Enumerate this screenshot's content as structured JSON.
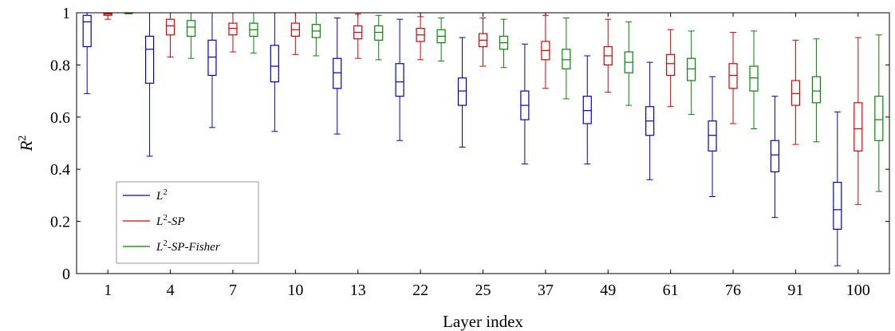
{
  "chart_data": {
    "type": "box",
    "xlabel": "Layer index",
    "ylabel_base": "R",
    "ylabel_sup": "2",
    "ylim": [
      0,
      1
    ],
    "yticks": [
      "0",
      "0.2",
      "0.4",
      "0.6",
      "0.8",
      "1"
    ],
    "categories": [
      "1",
      "4",
      "7",
      "10",
      "13",
      "22",
      "25",
      "37",
      "49",
      "61",
      "76",
      "91",
      "100"
    ],
    "legend_placement": "bottom-left",
    "series": [
      {
        "name_base": "L",
        "name_sup": "2",
        "name_suffix": "",
        "color": "#0000cc",
        "boxes": [
          {
            "min": 0.69,
            "q1": 0.87,
            "median": 0.965,
            "q3": 0.99,
            "max": 1.0
          },
          {
            "min": 0.45,
            "q1": 0.73,
            "median": 0.86,
            "q3": 0.91,
            "max": 1.0
          },
          {
            "min": 0.56,
            "q1": 0.76,
            "median": 0.83,
            "q3": 0.895,
            "max": 1.0
          },
          {
            "min": 0.545,
            "q1": 0.735,
            "median": 0.795,
            "q3": 0.875,
            "max": 1.0
          },
          {
            "min": 0.535,
            "q1": 0.71,
            "median": 0.77,
            "q3": 0.825,
            "max": 0.98
          },
          {
            "min": 0.51,
            "q1": 0.68,
            "median": 0.735,
            "q3": 0.805,
            "max": 0.975
          },
          {
            "min": 0.485,
            "q1": 0.645,
            "median": 0.7,
            "q3": 0.75,
            "max": 0.905
          },
          {
            "min": 0.42,
            "q1": 0.59,
            "median": 0.645,
            "q3": 0.7,
            "max": 0.88
          },
          {
            "min": 0.42,
            "q1": 0.575,
            "median": 0.625,
            "q3": 0.68,
            "max": 0.835
          },
          {
            "min": 0.36,
            "q1": 0.53,
            "median": 0.585,
            "q3": 0.64,
            "max": 0.81
          },
          {
            "min": 0.295,
            "q1": 0.47,
            "median": 0.53,
            "q3": 0.585,
            "max": 0.755
          },
          {
            "min": 0.215,
            "q1": 0.39,
            "median": 0.455,
            "q3": 0.51,
            "max": 0.68
          },
          {
            "min": 0.03,
            "q1": 0.17,
            "median": 0.245,
            "q3": 0.35,
            "max": 0.62
          }
        ]
      },
      {
        "name_base": "L",
        "name_sup": "2",
        "name_suffix": "-SP",
        "color": "#dd0000",
        "boxes": [
          {
            "min": 0.975,
            "q1": 0.99,
            "median": 0.995,
            "q3": 0.998,
            "max": 1.0
          },
          {
            "min": 0.83,
            "q1": 0.915,
            "median": 0.95,
            "q3": 0.975,
            "max": 1.0
          },
          {
            "min": 0.85,
            "q1": 0.915,
            "median": 0.94,
            "q3": 0.96,
            "max": 1.0
          },
          {
            "min": 0.84,
            "q1": 0.91,
            "median": 0.935,
            "q3": 0.96,
            "max": 1.0
          },
          {
            "min": 0.825,
            "q1": 0.9,
            "median": 0.925,
            "q3": 0.95,
            "max": 0.995
          },
          {
            "min": 0.82,
            "q1": 0.89,
            "median": 0.915,
            "q3": 0.94,
            "max": 0.985
          },
          {
            "min": 0.795,
            "q1": 0.87,
            "median": 0.895,
            "q3": 0.92,
            "max": 0.98
          },
          {
            "min": 0.71,
            "q1": 0.82,
            "median": 0.855,
            "q3": 0.89,
            "max": 0.99
          },
          {
            "min": 0.695,
            "q1": 0.8,
            "median": 0.835,
            "q3": 0.87,
            "max": 0.975
          },
          {
            "min": 0.64,
            "q1": 0.76,
            "median": 0.805,
            "q3": 0.84,
            "max": 0.935
          },
          {
            "min": 0.575,
            "q1": 0.71,
            "median": 0.76,
            "q3": 0.805,
            "max": 0.925
          },
          {
            "min": 0.495,
            "q1": 0.645,
            "median": 0.69,
            "q3": 0.74,
            "max": 0.895
          },
          {
            "min": 0.265,
            "q1": 0.47,
            "median": 0.555,
            "q3": 0.655,
            "max": 0.905
          }
        ]
      },
      {
        "name_base": "L",
        "name_sup": "2",
        "name_suffix": "-SP-Fisher",
        "color": "#008800",
        "boxes": [
          {
            "min": 0.996,
            "q1": 0.998,
            "median": 0.999,
            "q3": 1.0,
            "max": 1.0
          },
          {
            "min": 0.825,
            "q1": 0.91,
            "median": 0.945,
            "q3": 0.97,
            "max": 1.0
          },
          {
            "min": 0.845,
            "q1": 0.91,
            "median": 0.935,
            "q3": 0.96,
            "max": 1.0
          },
          {
            "min": 0.835,
            "q1": 0.905,
            "median": 0.93,
            "q3": 0.955,
            "max": 1.0
          },
          {
            "min": 0.82,
            "q1": 0.895,
            "median": 0.925,
            "q3": 0.95,
            "max": 0.99
          },
          {
            "min": 0.815,
            "q1": 0.885,
            "median": 0.91,
            "q3": 0.935,
            "max": 0.98
          },
          {
            "min": 0.79,
            "q1": 0.86,
            "median": 0.885,
            "q3": 0.91,
            "max": 0.975
          },
          {
            "min": 0.67,
            "q1": 0.785,
            "median": 0.82,
            "q3": 0.86,
            "max": 0.98
          },
          {
            "min": 0.645,
            "q1": 0.77,
            "median": 0.81,
            "q3": 0.85,
            "max": 0.965
          },
          {
            "min": 0.61,
            "q1": 0.74,
            "median": 0.785,
            "q3": 0.825,
            "max": 0.93
          },
          {
            "min": 0.555,
            "q1": 0.7,
            "median": 0.75,
            "q3": 0.795,
            "max": 0.93
          },
          {
            "min": 0.505,
            "q1": 0.655,
            "median": 0.7,
            "q3": 0.755,
            "max": 0.9
          },
          {
            "min": 0.315,
            "q1": 0.51,
            "median": 0.59,
            "q3": 0.68,
            "max": 0.915
          }
        ]
      }
    ]
  }
}
